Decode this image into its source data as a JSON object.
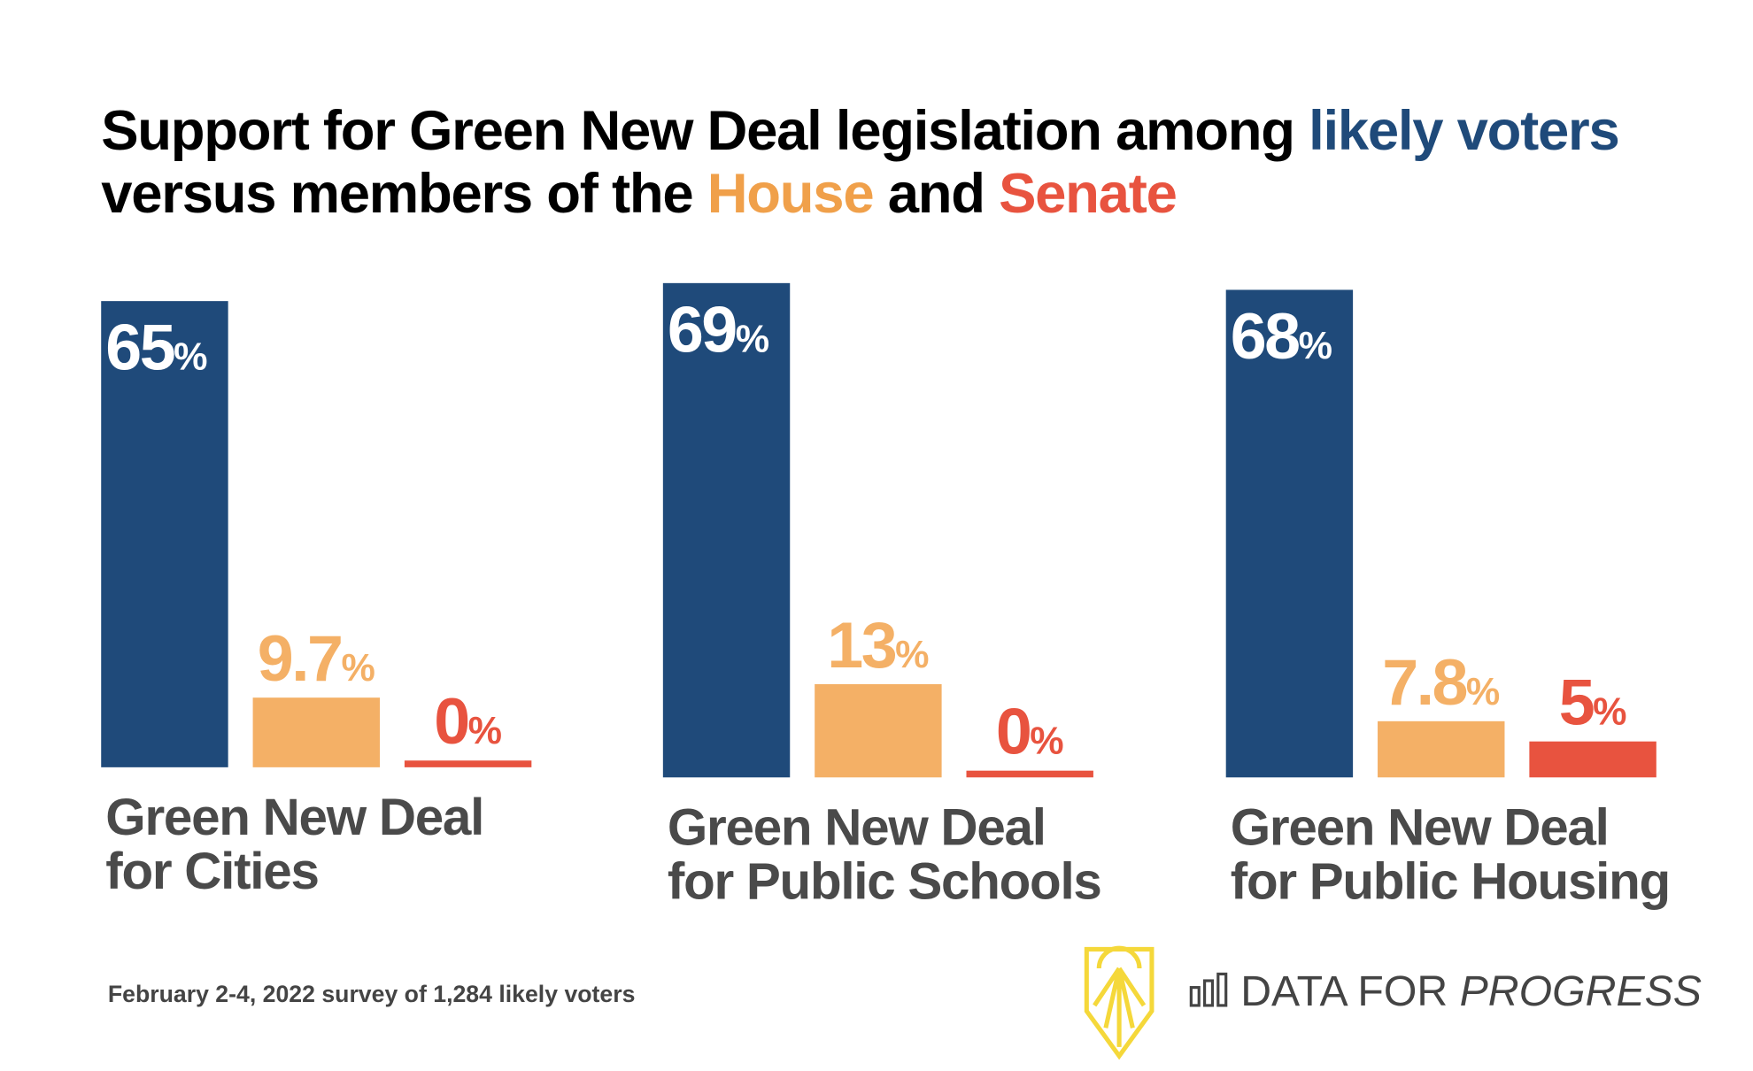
{
  "chart_data": {
    "type": "bar",
    "title_parts": [
      {
        "text": "Support for Green New Deal legislation among ",
        "color": "#000000"
      },
      {
        "text": "likely voters",
        "color": "#1f4a7a"
      },
      {
        "text": " versus members of the ",
        "color": "#000000"
      },
      {
        "text": "House",
        "color": "#f0a04a"
      },
      {
        "text": " and ",
        "color": "#000000"
      },
      {
        "text": "Senate",
        "color": "#e8533f"
      }
    ],
    "categories": [
      "Green New Deal for Cities",
      "Green New Deal for Public Schools",
      "Green New Deal for Public Housing"
    ],
    "category_lines": [
      [
        "Green New Deal",
        "for Cities"
      ],
      [
        "Green New Deal",
        "for Public Schools"
      ],
      [
        "Green New Deal",
        "for Public Housing"
      ]
    ],
    "series": [
      {
        "name": "likely voters",
        "color": "#1f4a7a",
        "label_color": "#ffffff",
        "values": [
          65,
          69,
          68
        ],
        "labels": [
          "65",
          "69",
          "68"
        ]
      },
      {
        "name": "House",
        "color": "#f4b066",
        "label_color": "#f4b066",
        "values": [
          9.7,
          13,
          7.8
        ],
        "labels": [
          "9.7",
          "13",
          "7.8"
        ]
      },
      {
        "name": "Senate",
        "color": "#e8533f",
        "label_color": "#e8533f",
        "values": [
          0,
          0,
          5
        ],
        "labels": [
          "0",
          "0",
          "5"
        ]
      }
    ],
    "unit": "%",
    "grid": false,
    "axes_visible": false
  },
  "footnote": "February 2-4, 2022 survey of 1,284 likely voters",
  "brand": {
    "prefix": "DATA FOR ",
    "emphasis": "PROGRESS",
    "logo_color": "#f5d83a"
  }
}
